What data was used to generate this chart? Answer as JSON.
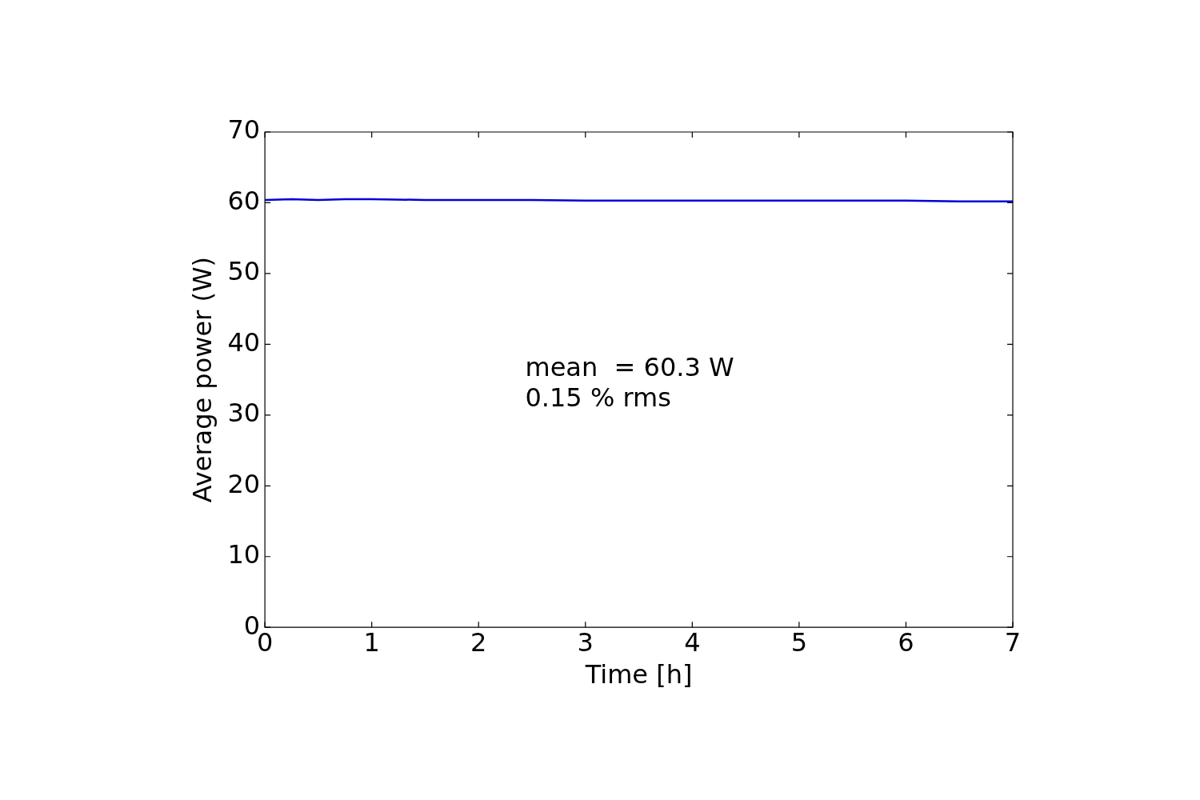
{
  "chart_data": {
    "type": "line",
    "xlabel": "Time [h]",
    "ylabel": "Average power (W)",
    "x": [
      0,
      0.25,
      0.5,
      0.75,
      1,
      1.5,
      2,
      2.5,
      3,
      3.5,
      4,
      4.5,
      5,
      5.5,
      6,
      6.5,
      7
    ],
    "series": [
      {
        "color": "#0000dd",
        "values": [
          60.4,
          60.5,
          60.4,
          60.5,
          60.5,
          60.4,
          60.4,
          60.4,
          60.3,
          60.3,
          60.3,
          60.3,
          60.3,
          60.3,
          60.3,
          60.2,
          60.2
        ]
      }
    ],
    "xlim": [
      0,
      7
    ],
    "xticks": [
      0,
      1,
      2,
      3,
      4,
      5,
      6,
      7
    ],
    "ylim": [
      0,
      70
    ],
    "yticks": [
      0,
      10,
      20,
      30,
      40,
      50,
      60,
      70
    ],
    "annotations": [
      "mean  = 60.3 W",
      "0.15 % rms"
    ],
    "marker": "none",
    "line_style": "solid",
    "grid": false,
    "legend": false
  }
}
